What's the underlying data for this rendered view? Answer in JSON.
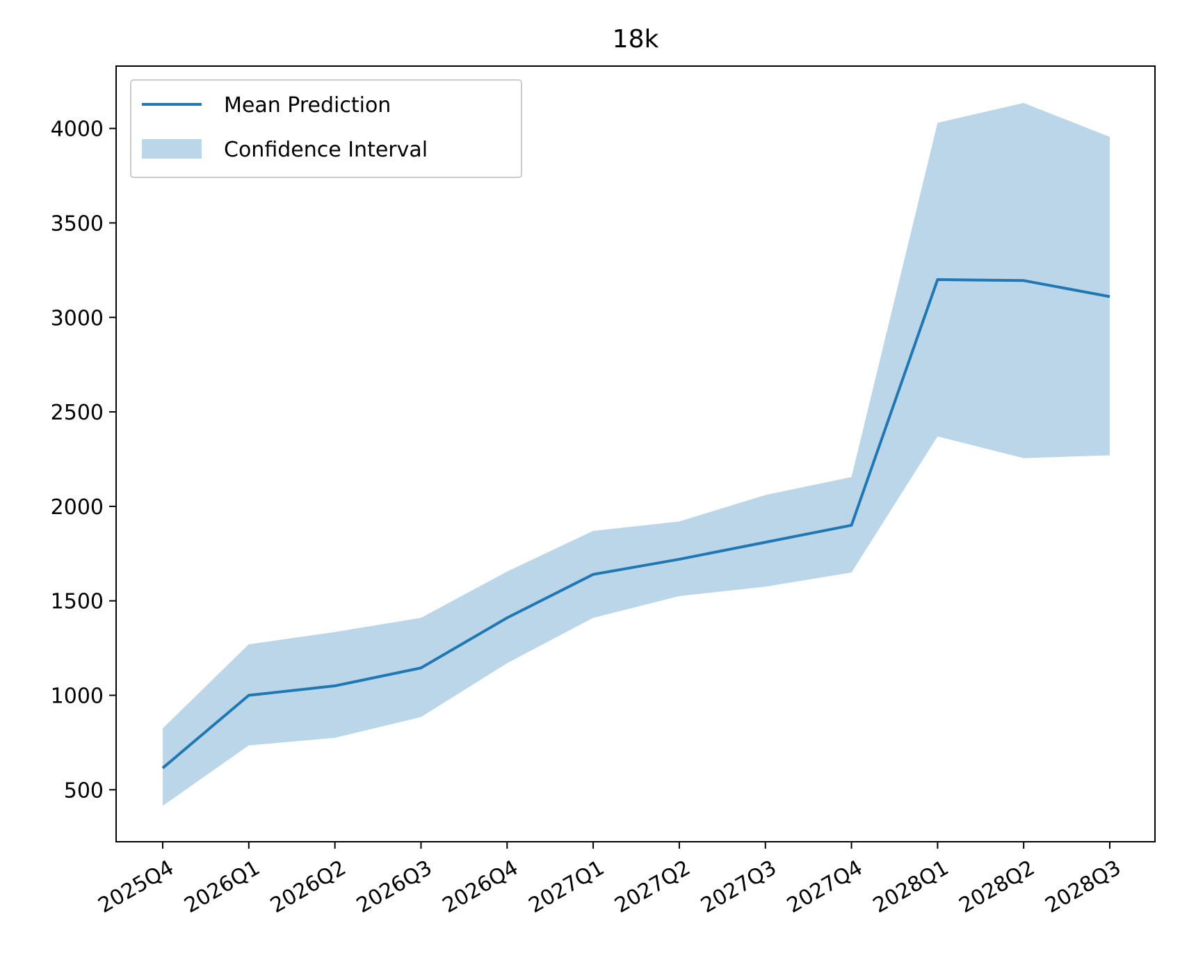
{
  "chart_data": {
    "type": "line",
    "title": "18k",
    "xlabel": "",
    "ylabel": "",
    "categories": [
      "2025Q4",
      "2026Q1",
      "2026Q2",
      "2026Q3",
      "2026Q4",
      "2027Q1",
      "2027Q2",
      "2027Q3",
      "2027Q4",
      "2028Q1",
      "2028Q2",
      "2028Q3"
    ],
    "series": [
      {
        "name": "Mean Prediction",
        "type": "line",
        "color": "#1f77b4",
        "values": [
          615,
          1000,
          1050,
          1145,
          1410,
          1640,
          1720,
          1810,
          1900,
          3200,
          3195,
          3110
        ]
      },
      {
        "name": "Confidence Interval",
        "type": "band",
        "color": "#1f77b4",
        "opacity": 0.3,
        "lower": [
          415,
          735,
          775,
          885,
          1170,
          1410,
          1525,
          1575,
          1650,
          2370,
          2255,
          2270
        ],
        "upper": [
          825,
          1270,
          1335,
          1410,
          1655,
          1870,
          1920,
          2060,
          2155,
          4030,
          4135,
          3955
        ]
      }
    ],
    "yticks": [
      500,
      1000,
      1500,
      2000,
      2500,
      3000,
      3500,
      4000
    ],
    "ylim": [
      225,
      4330
    ],
    "grid": false,
    "legend": "upper-left",
    "x_tick_rotation": 30
  }
}
